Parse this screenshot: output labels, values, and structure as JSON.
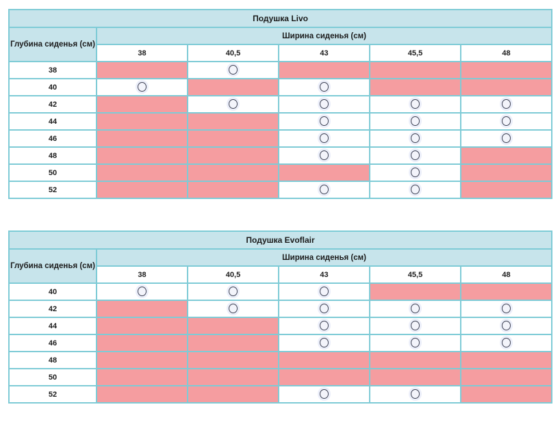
{
  "colors": {
    "header_bg": "#c7e4eb",
    "unavailable_bg": "#f59da0",
    "border_inner": "#7ecbd6",
    "border_outer": "#52b2c4",
    "circle_ring": "#3e4254",
    "circle_fill": "#f3f4fb"
  },
  "symbols": {
    "available": "circle-icon"
  },
  "tables": [
    {
      "title": "Подушка Livo",
      "depth_header": "Глубина сиденья (см)",
      "width_header": "Ширина сиденья (см)",
      "columns": [
        "38",
        "40,5",
        "43",
        "45,5",
        "48"
      ],
      "rows": [
        {
          "depth": "38",
          "cells": [
            false,
            true,
            false,
            false,
            false
          ]
        },
        {
          "depth": "40",
          "cells": [
            true,
            false,
            true,
            false,
            false
          ]
        },
        {
          "depth": "42",
          "cells": [
            false,
            true,
            true,
            true,
            true
          ]
        },
        {
          "depth": "44",
          "cells": [
            false,
            false,
            true,
            true,
            true
          ]
        },
        {
          "depth": "46",
          "cells": [
            false,
            false,
            true,
            true,
            true
          ]
        },
        {
          "depth": "48",
          "cells": [
            false,
            false,
            true,
            true,
            false
          ]
        },
        {
          "depth": "50",
          "cells": [
            false,
            false,
            false,
            true,
            false
          ]
        },
        {
          "depth": "52",
          "cells": [
            false,
            false,
            true,
            true,
            false
          ]
        }
      ]
    },
    {
      "title": "Подушка Evoflair",
      "depth_header": "Глубина сиденья (см)",
      "width_header": "Ширина сиденья (см)",
      "columns": [
        "38",
        "40,5",
        "43",
        "45,5",
        "48"
      ],
      "rows": [
        {
          "depth": "40",
          "cells": [
            true,
            true,
            true,
            false,
            false
          ]
        },
        {
          "depth": "42",
          "cells": [
            false,
            true,
            true,
            true,
            true
          ]
        },
        {
          "depth": "44",
          "cells": [
            false,
            false,
            true,
            true,
            true
          ]
        },
        {
          "depth": "46",
          "cells": [
            false,
            false,
            true,
            true,
            true
          ]
        },
        {
          "depth": "48",
          "cells": [
            false,
            false,
            false,
            false,
            false
          ]
        },
        {
          "depth": "50",
          "cells": [
            false,
            false,
            false,
            false,
            false
          ]
        },
        {
          "depth": "52",
          "cells": [
            false,
            false,
            true,
            true,
            false
          ]
        }
      ]
    }
  ]
}
